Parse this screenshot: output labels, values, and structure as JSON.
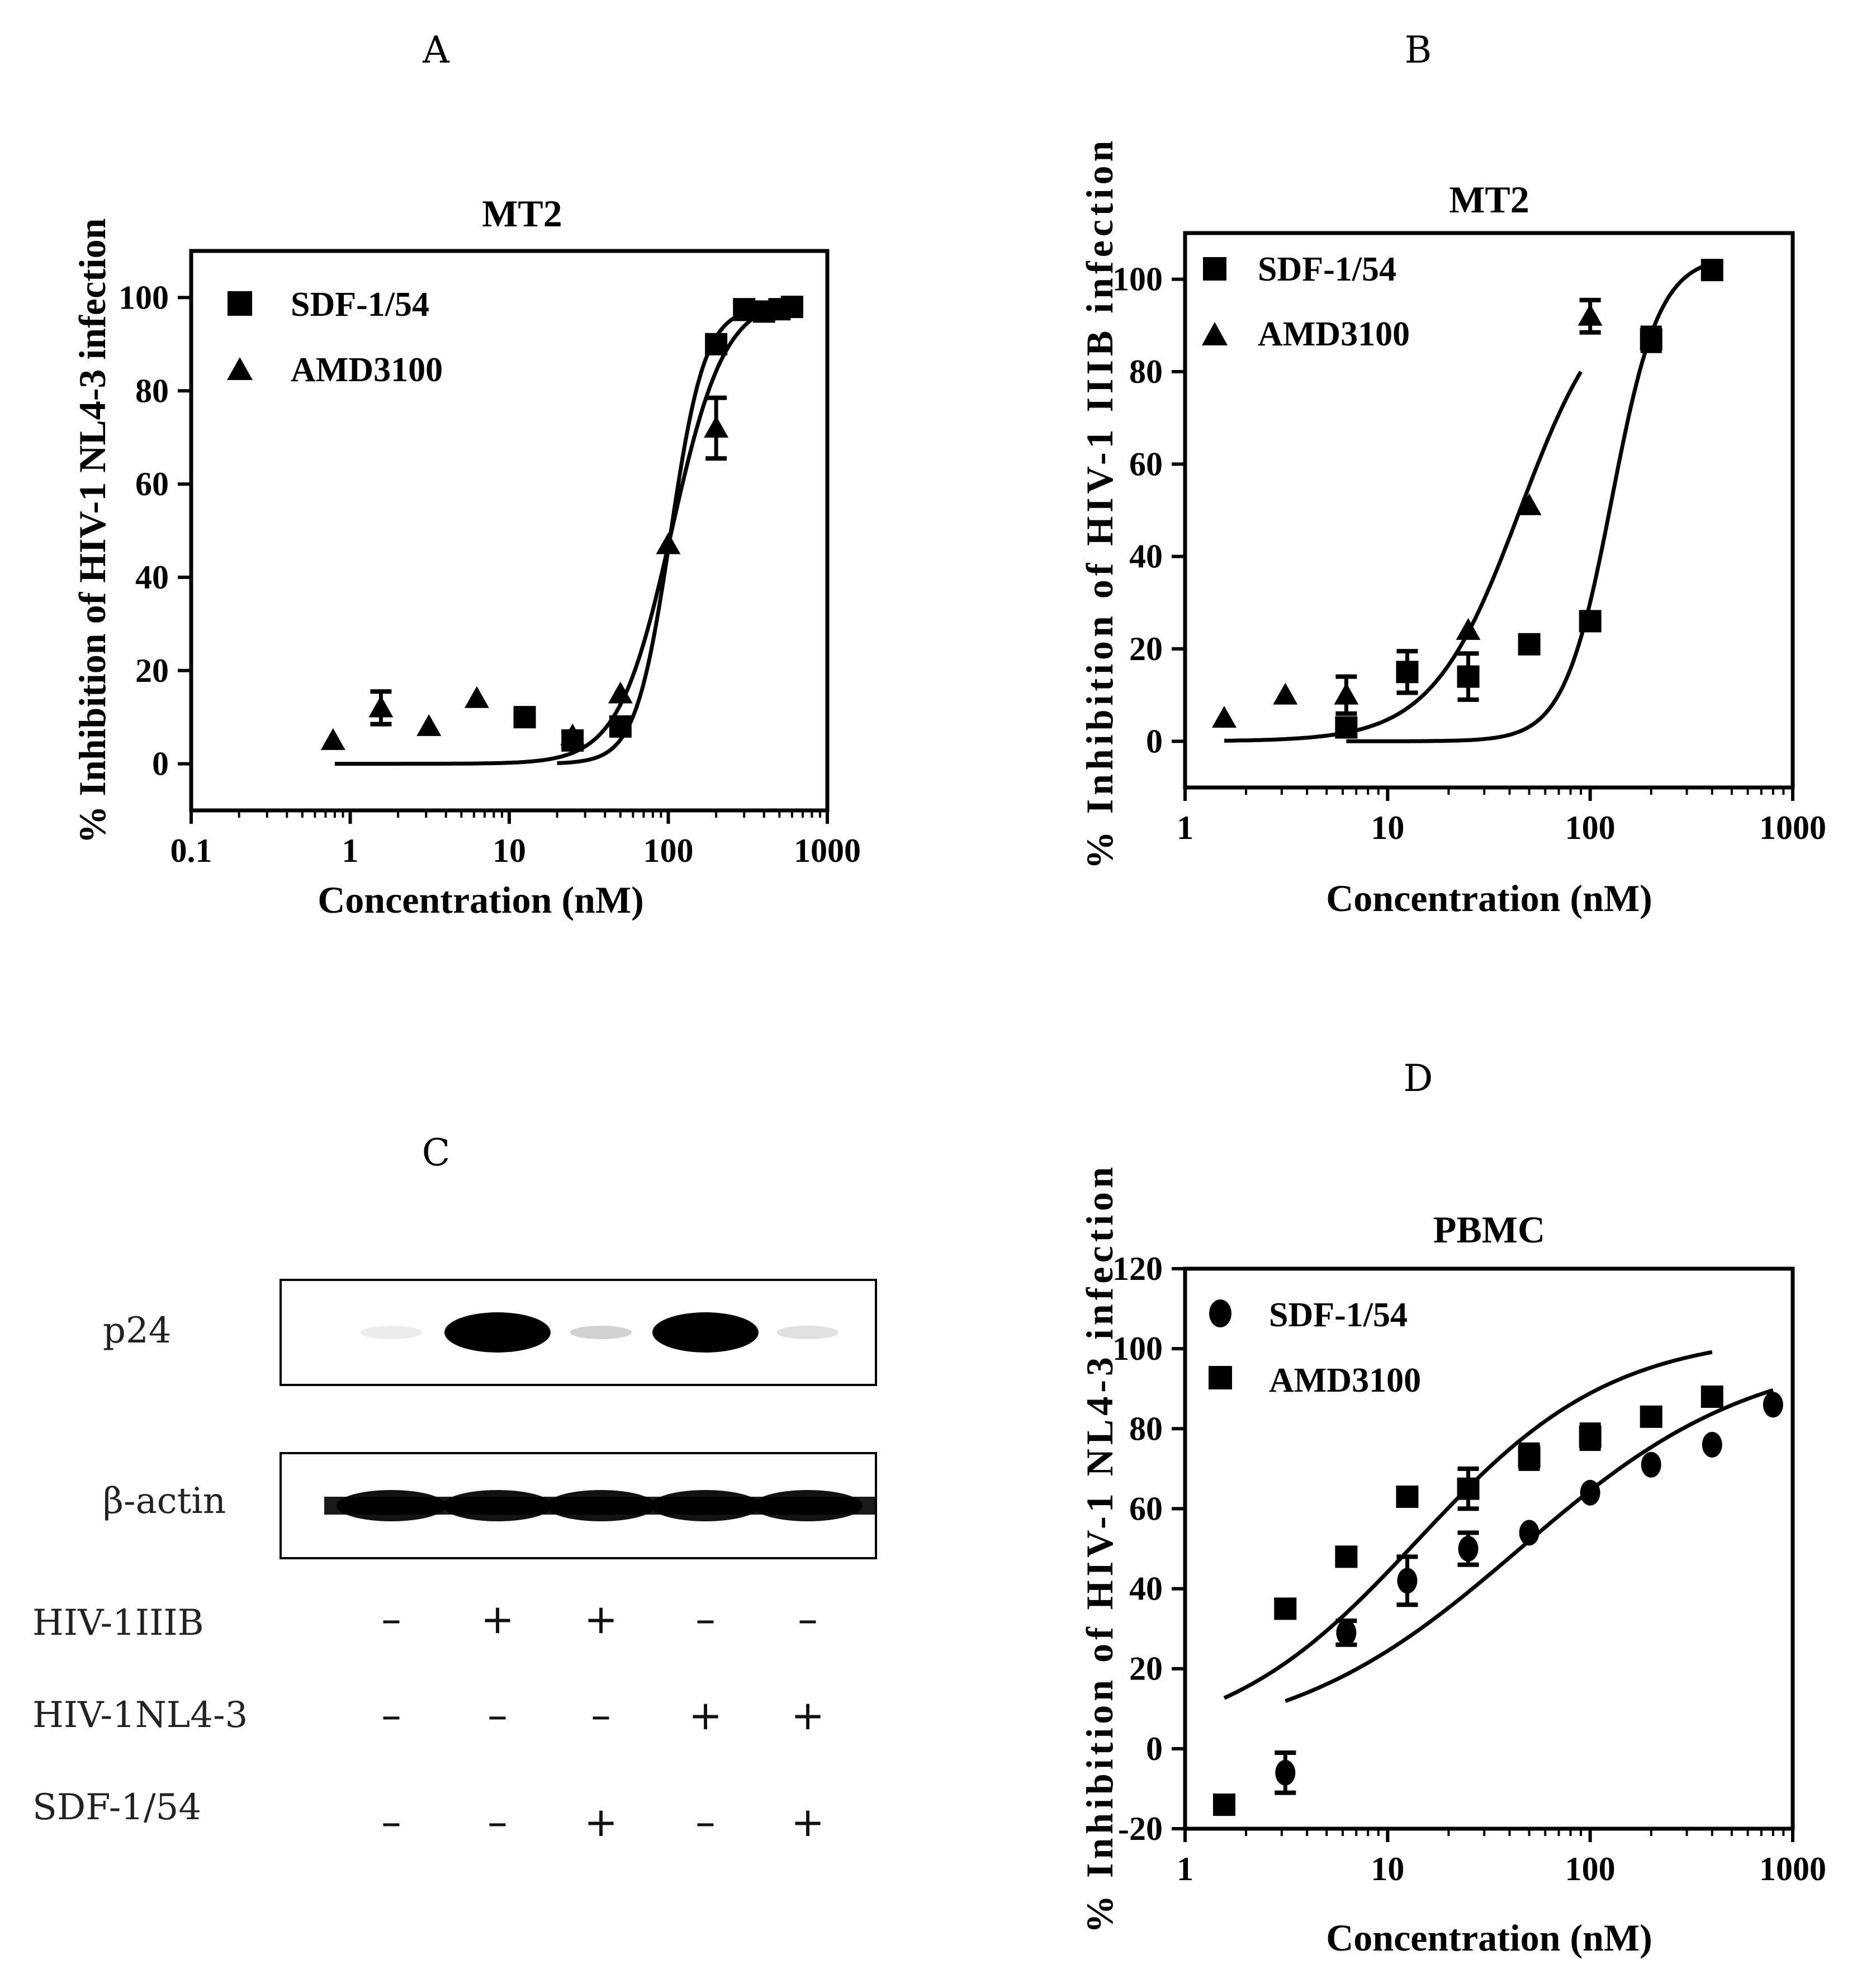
{
  "chart_data": [
    {
      "panel": "A",
      "type": "scatter",
      "title": "MT2",
      "xlabel": "Concentration (nM)",
      "ylabel": "% Inhibition of HIV-1 NL4-3 infection",
      "xscale": "log",
      "xlim": [
        0.1,
        1000
      ],
      "ylim": [
        -10,
        110
      ],
      "xticks": [
        0.1,
        1,
        10,
        100,
        1000
      ],
      "xticklabels": [
        "0.1",
        "1",
        "10",
        "100",
        "1000"
      ],
      "yticks": [
        0,
        20,
        40,
        60,
        80,
        100
      ],
      "yticklabels": [
        "0",
        "20",
        "40",
        "60",
        "80",
        "100"
      ],
      "legend_position": "top-left",
      "series": [
        {
          "name": "SDF-1/54",
          "marker": "square",
          "points": [
            {
              "x": 12.5,
              "y": 10,
              "err": 0
            },
            {
              "x": 25,
              "y": 5,
              "err": 0
            },
            {
              "x": 50,
              "y": 8,
              "err": 0
            },
            {
              "x": 200,
              "y": 90,
              "err": 0
            },
            {
              "x": 300,
              "y": 97.5,
              "err": 0
            },
            {
              "x": 400,
              "y": 97,
              "err": 0
            },
            {
              "x": 500,
              "y": 97.5,
              "err": 0
            },
            {
              "x": 600,
              "y": 98,
              "err": 0
            }
          ],
          "fit": {
            "bottom": 0,
            "top": 98,
            "ec50": 103,
            "hill": 4.0,
            "xmin": 20,
            "xmax": 600
          }
        },
        {
          "name": "AMD3100",
          "marker": "triangle",
          "points": [
            {
              "x": 0.78,
              "y": 5,
              "err": 0
            },
            {
              "x": 1.56,
              "y": 12,
              "err": 3.5
            },
            {
              "x": 3.125,
              "y": 8,
              "err": 0
            },
            {
              "x": 6.25,
              "y": 14,
              "err": 0
            },
            {
              "x": 25,
              "y": 6,
              "err": 0
            },
            {
              "x": 50,
              "y": 15,
              "err": 0
            },
            {
              "x": 100,
              "y": 47,
              "err": 0
            },
            {
              "x": 200,
              "y": 72,
              "err": 6.5
            },
            {
              "x": 300,
              "y": 97,
              "err": 0
            }
          ],
          "fit": {
            "bottom": 0,
            "top": 100,
            "ec50": 105,
            "hill": 2.6,
            "xmin": 0.8,
            "xmax": 600
          }
        }
      ]
    },
    {
      "panel": "B",
      "type": "scatter",
      "title": "MT2",
      "xlabel": "Concentration (nM)",
      "ylabel": "% Inhibition of HIV-1 IIIB infection",
      "xscale": "log",
      "xlim": [
        1,
        1000
      ],
      "ylim": [
        -10,
        110
      ],
      "xticks": [
        1,
        10,
        100,
        1000
      ],
      "xticklabels": [
        "1",
        "10",
        "100",
        "1000"
      ],
      "yticks": [
        0,
        20,
        40,
        60,
        80,
        100
      ],
      "yticklabels": [
        "0",
        "20",
        "40",
        "60",
        "80",
        "100"
      ],
      "legend_position": "top-left",
      "series": [
        {
          "name": "SDF-1/54",
          "marker": "square",
          "points": [
            {
              "x": 6.25,
              "y": 3,
              "err": 0
            },
            {
              "x": 12.5,
              "y": 15,
              "err": 4.5
            },
            {
              "x": 25,
              "y": 14,
              "err": 5
            },
            {
              "x": 50,
              "y": 21,
              "err": 0
            },
            {
              "x": 100,
              "y": 26,
              "err": 0
            },
            {
              "x": 200,
              "y": 87,
              "err": 2.5
            },
            {
              "x": 400,
              "y": 102,
              "err": 0
            }
          ],
          "fit": {
            "bottom": 0,
            "top": 105,
            "ec50": 128,
            "hill": 3.7,
            "xmin": 6.25,
            "xmax": 400
          }
        },
        {
          "name": "AMD3100",
          "marker": "triangle",
          "points": [
            {
              "x": 1.56,
              "y": 5,
              "err": 0
            },
            {
              "x": 3.125,
              "y": 10,
              "err": 0
            },
            {
              "x": 6.25,
              "y": 10,
              "err": 4
            },
            {
              "x": 25,
              "y": 24,
              "err": 0
            },
            {
              "x": 50,
              "y": 51,
              "err": 0
            },
            {
              "x": 100,
              "y": 92,
              "err": 3.5
            }
          ],
          "fit": {
            "bottom": 0,
            "top": 100,
            "ec50": 45,
            "hill": 2.0,
            "xmin": 1.56,
            "xmax": 90
          }
        }
      ]
    },
    {
      "panel": "D",
      "type": "scatter",
      "title": "PBMC",
      "xlabel": "Concentration (nM)",
      "ylabel": "% Inhibition of HIV-1 NL4-3 infection",
      "xscale": "log",
      "xlim": [
        1,
        1000
      ],
      "ylim": [
        -20,
        120
      ],
      "xticks": [
        1,
        10,
        100,
        1000
      ],
      "xticklabels": [
        "1",
        "10",
        "100",
        "1000"
      ],
      "yticks": [
        -20,
        0,
        20,
        40,
        60,
        80,
        100,
        120
      ],
      "yticklabels": [
        "-20",
        "0",
        "20",
        "40",
        "60",
        "80",
        "100",
        "120"
      ],
      "legend_position": "top-left",
      "series": [
        {
          "name": "SDF-1/54",
          "marker": "circle",
          "points": [
            {
              "x": 3.125,
              "y": -6,
              "err": 5
            },
            {
              "x": 6.25,
              "y": 29,
              "err": 3
            },
            {
              "x": 12.5,
              "y": 42,
              "err": 6
            },
            {
              "x": 25,
              "y": 50,
              "err": 4
            },
            {
              "x": 50,
              "y": 54,
              "err": 0
            },
            {
              "x": 100,
              "y": 64,
              "err": 0
            },
            {
              "x": 200,
              "y": 71,
              "err": 0
            },
            {
              "x": 400,
              "y": 76,
              "err": 0
            },
            {
              "x": 800,
              "y": 86,
              "err": 0
            }
          ],
          "fit": {
            "bottom": 0,
            "top": 100,
            "ec50": 45,
            "hill": 0.75,
            "xmin": 3.125,
            "xmax": 800
          }
        },
        {
          "name": "AMD3100",
          "marker": "square",
          "points": [
            {
              "x": 1.56,
              "y": -14,
              "err": 0
            },
            {
              "x": 3.125,
              "y": 35,
              "err": 0
            },
            {
              "x": 6.25,
              "y": 48,
              "err": 0
            },
            {
              "x": 12.5,
              "y": 63,
              "err": 0
            },
            {
              "x": 25,
              "y": 65,
              "err": 5
            },
            {
              "x": 50,
              "y": 73,
              "err": 3
            },
            {
              "x": 100,
              "y": 78,
              "err": 3
            },
            {
              "x": 200,
              "y": 83,
              "err": 0
            },
            {
              "x": 400,
              "y": 88,
              "err": 0
            }
          ],
          "fit": {
            "bottom": 0,
            "top": 104,
            "ec50": 14,
            "hill": 0.9,
            "xmin": 1.56,
            "xmax": 400
          }
        }
      ]
    }
  ],
  "panel_letters": {
    "A": "A",
    "B": "B",
    "C": "C",
    "D": "D"
  },
  "western_blot": {
    "panel": "C",
    "bands": [
      {
        "label": "p24",
        "lanes": [
          0.05,
          1.0,
          0.18,
          1.0,
          0.12
        ]
      },
      {
        "label": "β-actin",
        "lanes": [
          1.0,
          1.0,
          1.0,
          1.0,
          1.0
        ]
      }
    ],
    "conditions": [
      {
        "label": "HIV-1IIIB",
        "signs": [
          "–",
          "+",
          "+",
          "–",
          "–"
        ]
      },
      {
        "label": "HIV-1NL4-3",
        "signs": [
          "–",
          "–",
          "–",
          "+",
          "+"
        ]
      },
      {
        "label": "SDF-1/54",
        "signs": [
          "–",
          "–",
          "+",
          "–",
          "+"
        ]
      }
    ]
  }
}
